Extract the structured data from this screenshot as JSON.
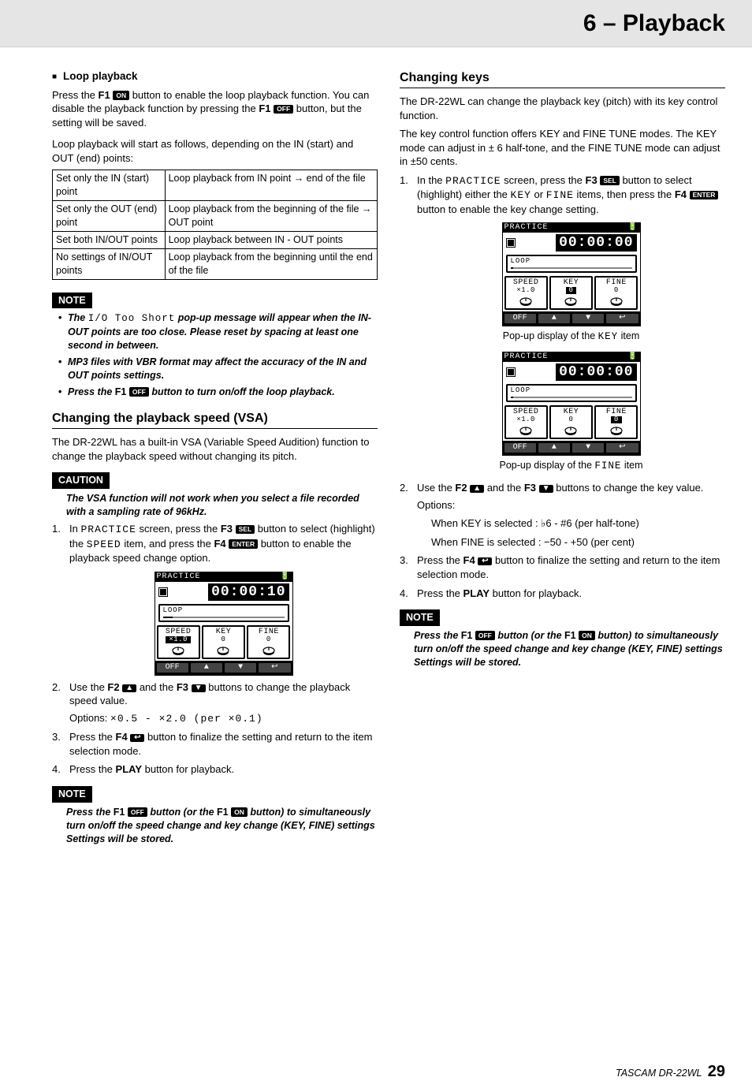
{
  "header": {
    "chapter": "6 – Playback"
  },
  "left": {
    "loop_heading": "Loop playback",
    "p1_a": "Press the ",
    "p1_b": "F1",
    "p1_badge1": "ON",
    "p1_c": " button to enable the loop playback function. You can disable the playback function by pressing the ",
    "p1_d": "F1",
    "p1_badge2": "OFF",
    "p1_e": " button, but the setting will be saved.",
    "p2": "Loop playback will start as follows, depending on the IN (start) and OUT (end) points:",
    "table": {
      "rows": [
        [
          "Set only the IN (start) point",
          "Loop playback from IN point → end of the file"
        ],
        [
          "Set only the OUT (end) point",
          "Loop playback from the beginning of the file → OUT point"
        ],
        [
          "Set both IN/OUT points",
          "Loop playback between IN - OUT points"
        ],
        [
          "No settings of IN/OUT points",
          "Loop playback from the beginning until the end of the file"
        ]
      ]
    },
    "note_label": "NOTE",
    "note_items": {
      "n1_a": "The ",
      "n1_mono": "I/O Too Short",
      "n1_b": " pop-up message will appear when the IN-OUT points are too close. Please reset by spacing at least one second in between.",
      "n2": "MP3 files with VBR format may affect the accuracy of the IN and OUT points settings.",
      "n3_a": "Press the ",
      "n3_b": "F1",
      "n3_badge": "OFF",
      "n3_c": " button to turn on/off the loop playback."
    },
    "vsa_heading": "Changing the playback speed (VSA)",
    "vsa_p1": "The DR-22WL has a built-in VSA (Variable Speed Audition) function to change the playback speed without changing its pitch.",
    "caution_label": "CAUTION",
    "caution_text": "The VSA function will not work when you select a file recorded with a sampling rate of 96kHz.",
    "vsa_steps": {
      "s1_a": "In ",
      "s1_mono": "PRACTICE",
      "s1_b": " screen, press the ",
      "s1_c": "F3",
      "s1_badge1": "SEL",
      "s1_d": " button to select (highlight) the ",
      "s1_mono2": "SPEED",
      "s1_e": " item, and press the ",
      "s1_f": "F4",
      "s1_badge2": "ENTER",
      "s1_g": " button to enable the playback speed change option.",
      "s2_a": "Use the ",
      "s2_b": "F2",
      "s2_badge1": "▲",
      "s2_c": " and the ",
      "s2_d": "F3",
      "s2_badge2": "▼",
      "s2_e": " buttons to change the playback speed value.",
      "s2_opts_a": "Options: ",
      "s2_opts_mono": "×0.5 - ×2.0 (per ×0.1)",
      "s3_a": "Press the ",
      "s3_b": "F4",
      "s3_badge": "↩",
      "s3_c": " button to finalize the setting and return to the item selection mode.",
      "s4_a": "Press the ",
      "s4_b": "PLAY",
      "s4_c": " button for playback."
    },
    "vsa_note_a": "Press the ",
    "vsa_note_b": "F1",
    "vsa_note_badge1": "OFF",
    "vsa_note_c": " button (or the ",
    "vsa_note_d": "F1",
    "vsa_note_badge2": "ON",
    "vsa_note_e": " button) to simultaneously turn on/off the speed change and key change (KEY, FINE) settings Settings will be stored.",
    "lcd1": {
      "title": "PRACTICE",
      "time": "00:00:10",
      "loop_label": "LOOP",
      "bar_pct": 8,
      "speed_l": "SPEED",
      "speed_v": "×1.0",
      "speed_hl": true,
      "key_l": "KEY",
      "key_v": "0",
      "key_hl": false,
      "fine_l": "FINE",
      "fine_v": "0",
      "fine_hl": false,
      "fkeys": [
        "OFF",
        "▲",
        "▼",
        "↩"
      ]
    }
  },
  "right": {
    "keys_heading": "Changing keys",
    "p1": "The DR-22WL can change the playback key (pitch) with its key control function.",
    "p2": "The key control function offers KEY and FINE TUNE modes. The KEY mode can adjust in ± 6 half-tone, and the FINE TUNE mode can adjust in ±50 cents.",
    "steps": {
      "s1_a": "In the ",
      "s1_mono": "PRACTICE",
      "s1_b": " screen, press the ",
      "s1_c": "F3",
      "s1_badge1": "SEL",
      "s1_d": " button to select (highlight) either the ",
      "s1_mono_key": "KEY",
      "s1_e": " or ",
      "s1_mono_fine": "FINE",
      "s1_f": " items, then press the ",
      "s1_g": "F4",
      "s1_badge2": "ENTER",
      "s1_h": " button to enable the key change setting.",
      "cap1_a": "Pop-up display of the ",
      "cap1_mono": "KEY",
      "cap1_b": " item",
      "cap2_a": "Pop-up display of the ",
      "cap2_mono": "FINE",
      "cap2_b": " item",
      "s2_a": "Use the ",
      "s2_b": "F2",
      "s2_badge1": "▲",
      "s2_c": " and the ",
      "s2_d": "F3",
      "s2_badge2": "▼",
      "s2_e": " buttons to change the key value.",
      "s2_opts_label": "Options:",
      "s2_opt_key": "When KEY is selected   : ♭6 - #6 (per half-tone)",
      "s2_opt_fine": "When FINE is selected  : −50 - +50 (per cent)",
      "s3_a": "Press the ",
      "s3_b": "F4",
      "s3_badge": "↩",
      "s3_c": " button to finalize the setting and return to the item selection mode.",
      "s4_a": "Press the ",
      "s4_b": "PLAY",
      "s4_c": " button for playback."
    },
    "note_a": "Press the ",
    "note_b": "F1",
    "note_badge1": "OFF",
    "note_c": " button (or the ",
    "note_d": "F1",
    "note_badge2": "ON",
    "note_e": " button) to simultaneously turn on/off the speed change and key change (KEY, FINE) settings Settings will be stored.",
    "lcd2": {
      "title": "PRACTICE",
      "time": "00:00:00",
      "loop_label": "LOOP",
      "bar_pct": 2,
      "speed_l": "SPEED",
      "speed_v": "×1.0",
      "speed_hl": false,
      "key_l": "KEY",
      "key_v": "0",
      "key_hl": true,
      "fine_l": "FINE",
      "fine_v": "0",
      "fine_hl": false,
      "fkeys": [
        "OFF",
        "▲",
        "▼",
        "↩"
      ]
    },
    "lcd3": {
      "title": "PRACTICE",
      "time": "00:00:00",
      "loop_label": "LOOP",
      "bar_pct": 2,
      "speed_l": "SPEED",
      "speed_v": "×1.0",
      "speed_hl": false,
      "key_l": "KEY",
      "key_v": "0",
      "key_hl": false,
      "fine_l": "FINE",
      "fine_v": "0",
      "fine_hl": true,
      "fkeys": [
        "OFF",
        "▲",
        "▼",
        "↩"
      ]
    }
  },
  "footer": {
    "brand": "TASCAM  DR-22WL",
    "page": "29"
  }
}
